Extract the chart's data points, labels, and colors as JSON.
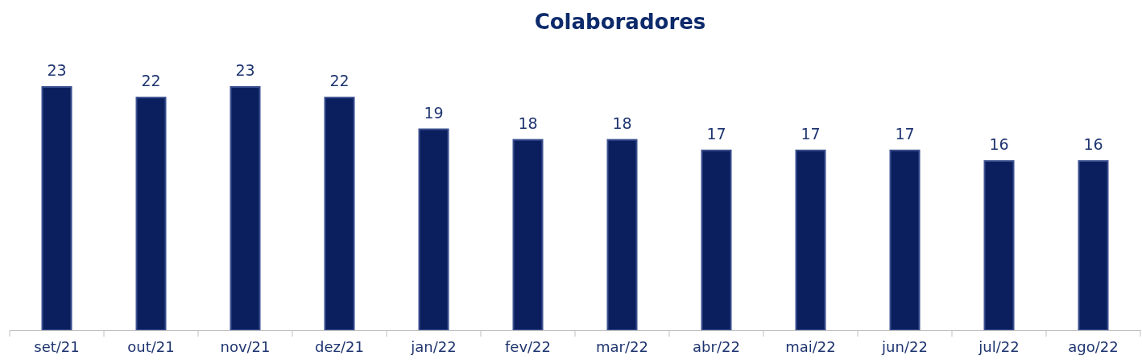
{
  "chart_data": {
    "type": "bar",
    "title": "Colaboradores",
    "categories": [
      "set/21",
      "out/21",
      "nov/21",
      "dez/21",
      "jan/22",
      "fev/22",
      "mar/22",
      "abr/22",
      "mai/22",
      "jun/22",
      "jul/22",
      "ago/22"
    ],
    "values": [
      23,
      22,
      23,
      22,
      19,
      18,
      18,
      17,
      17,
      17,
      16,
      16
    ],
    "color": "#0b1f5e",
    "data_labels": true
  }
}
